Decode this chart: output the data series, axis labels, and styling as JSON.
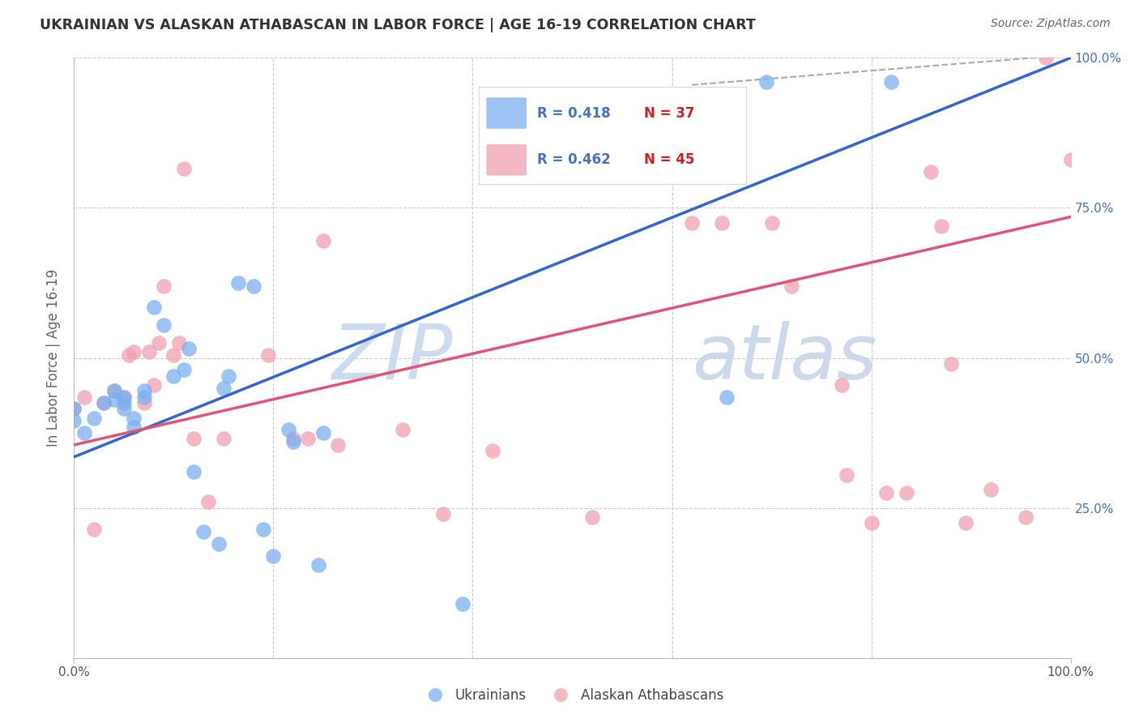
{
  "title": "UKRAINIAN VS ALASKAN ATHABASCAN IN LABOR FORCE | AGE 16-19 CORRELATION CHART",
  "source": "Source: ZipAtlas.com",
  "ylabel": "In Labor Force | Age 16-19",
  "xlim": [
    0.0,
    1.0
  ],
  "ylim": [
    0.0,
    1.0
  ],
  "grid_color": "#cccccc",
  "background_color": "#ffffff",
  "blue_color": "#7aaff0",
  "pink_color": "#f0a0b0",
  "blue_line_color": "#3366cc",
  "pink_line_color": "#e05575",
  "blue_line_x": [
    0.0,
    1.0
  ],
  "blue_line_y": [
    0.335,
    1.0
  ],
  "pink_line_x": [
    0.0,
    1.0
  ],
  "pink_line_y": [
    0.355,
    0.735
  ],
  "dash_line_x": [
    0.62,
    1.0
  ],
  "dash_line_y": [
    0.955,
    1.005
  ],
  "ukrainians_x": [
    0.0,
    0.0,
    0.01,
    0.02,
    0.03,
    0.04,
    0.04,
    0.05,
    0.05,
    0.05,
    0.06,
    0.06,
    0.07,
    0.07,
    0.08,
    0.09,
    0.1,
    0.11,
    0.115,
    0.12,
    0.13,
    0.145,
    0.15,
    0.155,
    0.165,
    0.18,
    0.19,
    0.2,
    0.215,
    0.22,
    0.245,
    0.25,
    0.39,
    0.655,
    0.695,
    0.82
  ],
  "ukrainians_y": [
    0.415,
    0.395,
    0.375,
    0.4,
    0.425,
    0.43,
    0.445,
    0.415,
    0.425,
    0.435,
    0.385,
    0.4,
    0.435,
    0.445,
    0.585,
    0.555,
    0.47,
    0.48,
    0.515,
    0.31,
    0.21,
    0.19,
    0.45,
    0.47,
    0.625,
    0.62,
    0.215,
    0.17,
    0.38,
    0.36,
    0.155,
    0.375,
    0.09,
    0.435,
    0.96,
    0.96
  ],
  "athabascan_x": [
    0.0,
    0.01,
    0.02,
    0.03,
    0.04,
    0.05,
    0.055,
    0.06,
    0.07,
    0.075,
    0.08,
    0.085,
    0.09,
    0.1,
    0.105,
    0.11,
    0.12,
    0.135,
    0.15,
    0.195,
    0.22,
    0.235,
    0.25,
    0.265,
    0.33,
    0.37,
    0.42,
    0.52,
    0.62,
    0.65,
    0.7,
    0.72,
    0.77,
    0.775,
    0.8,
    0.815,
    0.835,
    0.86,
    0.87,
    0.88,
    0.895,
    0.92,
    0.955,
    0.975,
    1.0
  ],
  "athabascan_y": [
    0.415,
    0.435,
    0.215,
    0.425,
    0.445,
    0.435,
    0.505,
    0.51,
    0.425,
    0.51,
    0.455,
    0.525,
    0.62,
    0.505,
    0.525,
    0.815,
    0.365,
    0.26,
    0.365,
    0.505,
    0.365,
    0.365,
    0.695,
    0.355,
    0.38,
    0.24,
    0.345,
    0.235,
    0.725,
    0.725,
    0.725,
    0.62,
    0.455,
    0.305,
    0.225,
    0.275,
    0.275,
    0.81,
    0.72,
    0.49,
    0.225,
    0.28,
    0.235,
    1.0,
    0.83
  ],
  "legend_r1_color": "#4472c4",
  "legend_n1_color": "#cc2222",
  "legend_r2_color": "#4472c4",
  "legend_n2_color": "#cc2222",
  "watermark_zip_color": "#c8d8f0",
  "watermark_atlas_color": "#c8d4e8"
}
